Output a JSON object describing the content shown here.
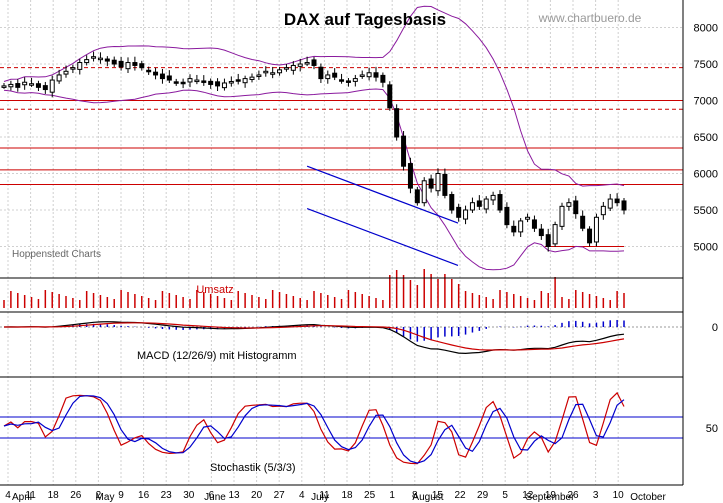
{
  "chart_data": [
    {
      "type": "candlestick",
      "title": "DAX auf Tagesbasis",
      "watermark": "www.chartbuero.de",
      "source_label": "Hoppenstedt Charts",
      "ylim": [
        4700,
        8200
      ],
      "y_ticks": [
        5000,
        5500,
        6000,
        6500,
        7000,
        7500,
        8000
      ],
      "x_day_labels": [
        "4",
        "11",
        "18",
        "26",
        "2",
        "9",
        "16",
        "23",
        "30",
        "6",
        "13",
        "20",
        "27",
        "4",
        "11",
        "18",
        "25",
        "1",
        "8",
        "15",
        "22",
        "29",
        "5",
        "12",
        "19",
        "26",
        "3",
        "10"
      ],
      "month_labels": [
        "April",
        "May",
        "June",
        "July",
        "August",
        "September",
        "October"
      ],
      "horizontal_lines": [
        7450,
        6880,
        7000,
        6350,
        6050,
        5850,
        5000
      ],
      "trend_channel": {
        "upper": [
          [
            44,
            6100
          ],
          [
            63,
            5430
          ]
        ],
        "lower": [
          [
            44,
            5520
          ],
          [
            63,
            4850
          ]
        ]
      },
      "price_series": [
        7200,
        7220,
        7180,
        7250,
        7230,
        7180,
        7150,
        7280,
        7350,
        7400,
        7450,
        7520,
        7560,
        7600,
        7580,
        7540,
        7500,
        7460,
        7520,
        7480,
        7450,
        7400,
        7350,
        7300,
        7280,
        7250,
        7230,
        7300,
        7280,
        7250,
        7220,
        7200,
        7240,
        7260,
        7280,
        7300,
        7320,
        7350,
        7400,
        7380,
        7420,
        7450,
        7480,
        7500,
        7520,
        7480,
        7300,
        7350,
        7320,
        7280,
        7250,
        7300,
        7350,
        7380,
        7320,
        7250,
        6900,
        6500,
        6100,
        5800,
        5600,
        5900,
        5800,
        6000,
        5700,
        5500,
        5400,
        5500,
        5600,
        5550,
        5650,
        5700,
        5500,
        5300,
        5200,
        5350,
        5400,
        5250,
        5150,
        5000,
        5300,
        5550,
        5600,
        5450,
        5250,
        5050,
        5400,
        5550,
        5650,
        5600,
        5500
      ],
      "bollinger": {
        "period": 20,
        "deviations": 2
      }
    },
    {
      "type": "bar",
      "title": "Umsatz"
    },
    {
      "type": "line",
      "title": "MACD (12/26/9) mit Histogramm",
      "y_ticks": [
        0
      ],
      "series": [
        {
          "name": "MACD",
          "color": "#000000"
        },
        {
          "name": "Signal",
          "color": "#cc0000"
        },
        {
          "name": "Histogramm",
          "color": "#0000cc"
        }
      ]
    },
    {
      "type": "line",
      "title": "Stochastik (5/3/3)",
      "y_ticks": [
        50
      ],
      "ylim": [
        0,
        100
      ],
      "reference_lines": [
        80,
        20
      ],
      "series": [
        {
          "name": "%K",
          "color": "#cc0000"
        },
        {
          "name": "%D",
          "color": "#0000cc"
        }
      ]
    }
  ]
}
